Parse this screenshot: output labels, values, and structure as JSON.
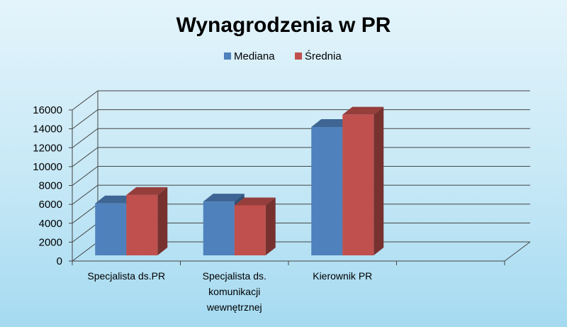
{
  "chart_data": {
    "type": "bar",
    "title": "Wynagrodzenia w PR",
    "categories": [
      [
        "Specjalista ds.PR"
      ],
      [
        "Specjalista ds.",
        "komunikacji",
        "wewnętrznej"
      ],
      [
        "Kierownik PR"
      ]
    ],
    "series": [
      {
        "name": "Mediana",
        "values": [
          6100,
          6300,
          14200
        ]
      },
      {
        "name": "Średnia",
        "values": [
          7000,
          5900,
          15500
        ]
      }
    ],
    "colors": [
      "#4f81bd",
      "#c0504d"
    ],
    "y_ticks": [
      0,
      2000,
      4000,
      6000,
      8000,
      10000,
      12000,
      14000,
      16000
    ],
    "ylim": [
      0,
      16000
    ],
    "legend_position": "top",
    "grid": true
  }
}
